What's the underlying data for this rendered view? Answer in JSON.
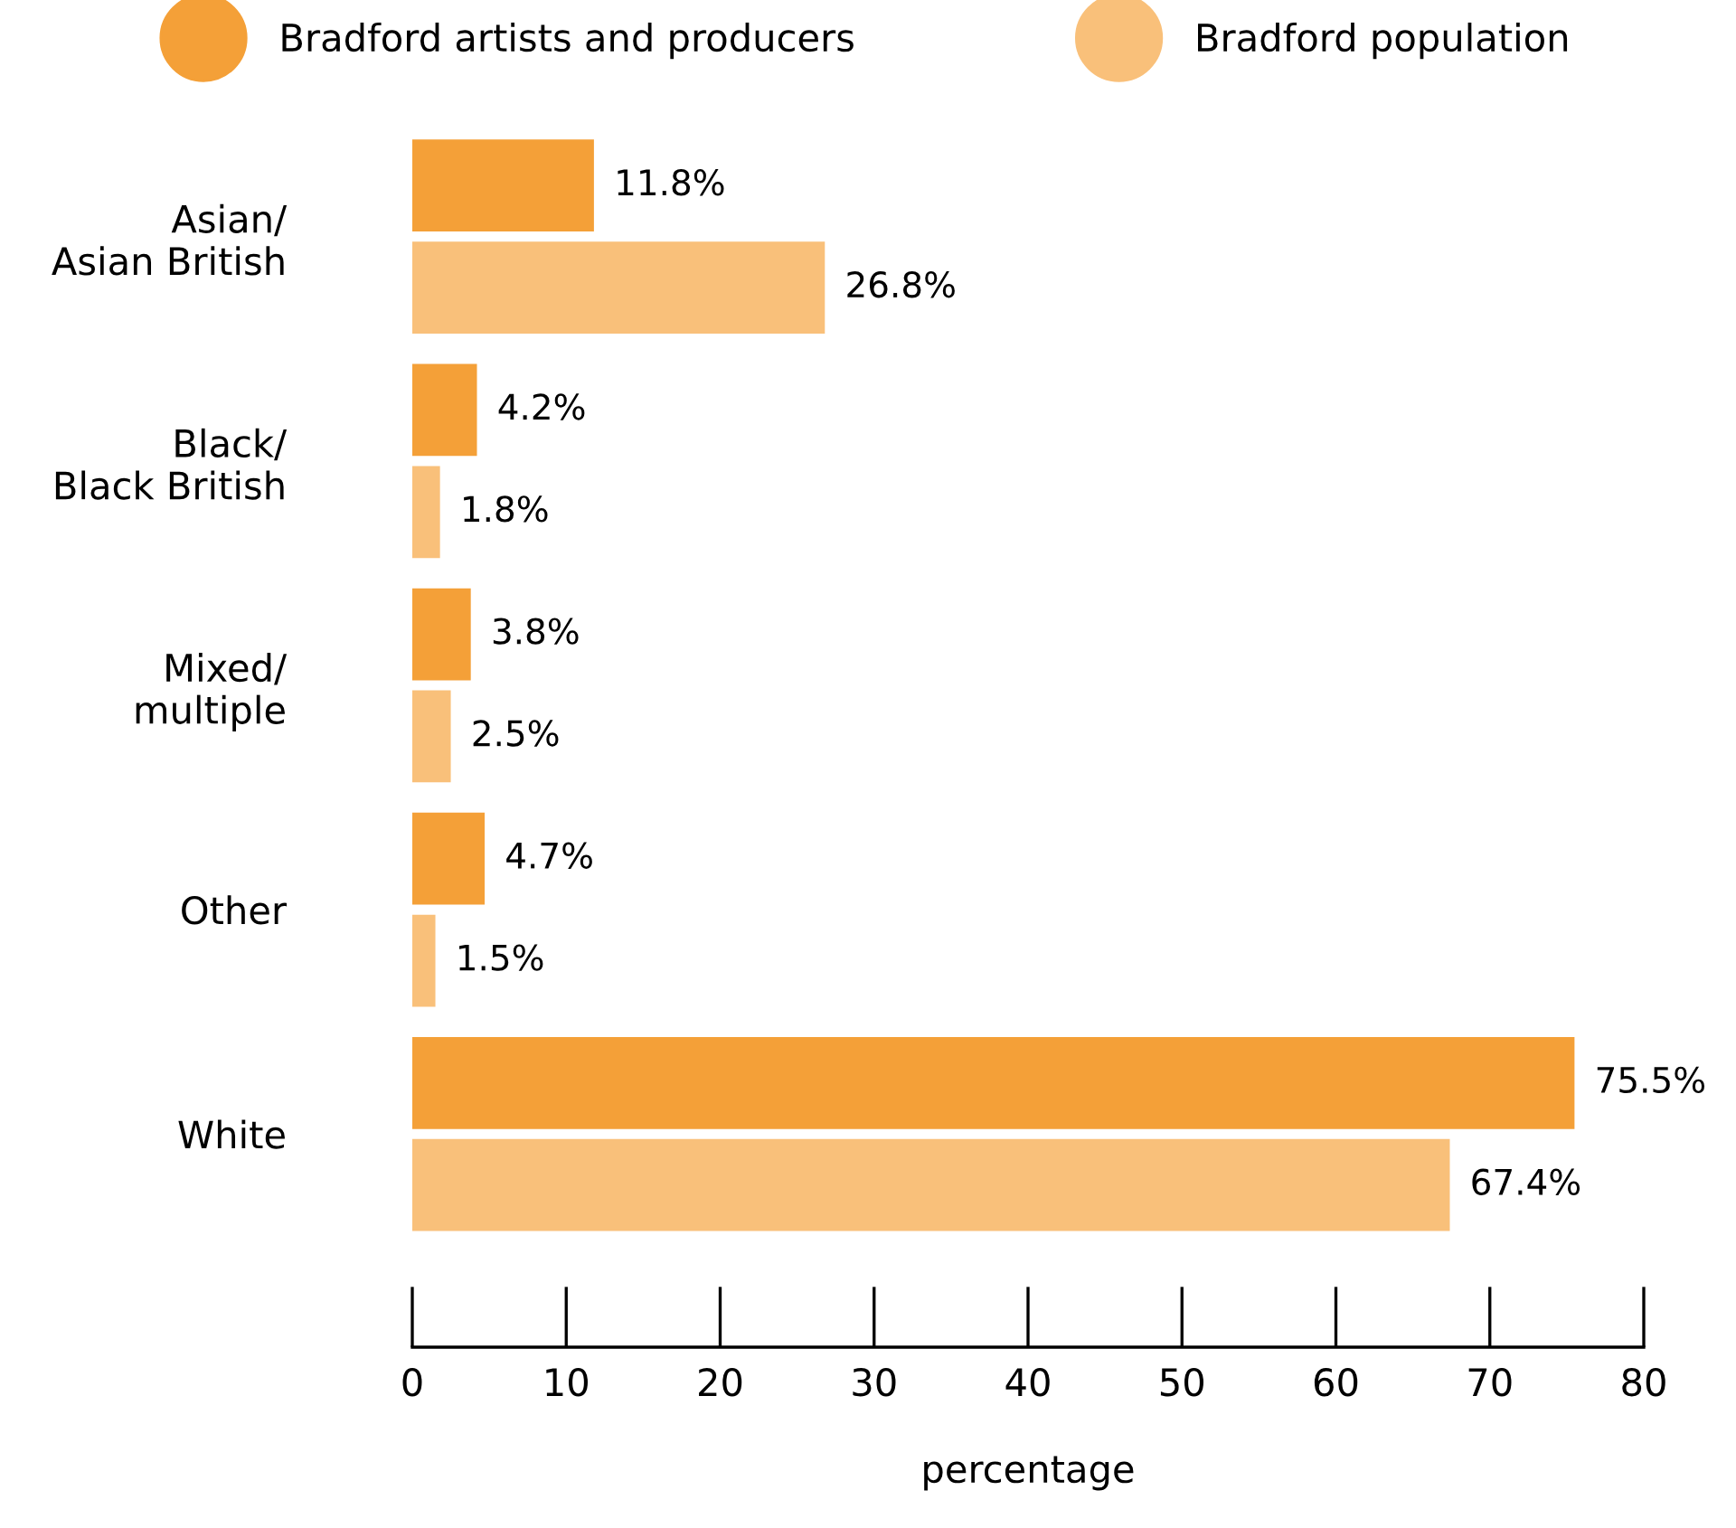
{
  "chart_data": {
    "type": "bar",
    "orientation": "horizontal",
    "xlabel": "percentage",
    "categories": [
      "Asian/\nAsian British",
      "Black/\nBlack British",
      "Mixed/\nmultiple",
      "Other",
      "White"
    ],
    "series": [
      {
        "name": "Bradford artists and producers",
        "color": "#f4a038",
        "values": [
          11.8,
          4.2,
          3.8,
          4.7,
          75.5
        ],
        "value_labels": [
          "11.8%",
          "4.2%",
          "3.8%",
          "4.7%",
          "75.5%"
        ]
      },
      {
        "name": "Bradford population",
        "color": "#f9c07a",
        "values": [
          26.8,
          1.8,
          2.5,
          1.5,
          67.4
        ],
        "value_labels": [
          "26.8%",
          "1.8%",
          "2.5%",
          "1.5%",
          "67.4%"
        ]
      }
    ],
    "xlim": [
      0,
      80
    ],
    "xticks": [
      0,
      10,
      20,
      30,
      40,
      50,
      60,
      70,
      80
    ],
    "legend": "top",
    "grid": false,
    "marker": "circle"
  }
}
